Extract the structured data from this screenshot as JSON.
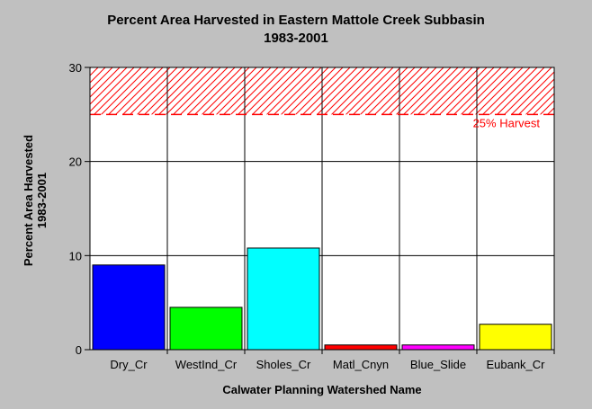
{
  "chart_data": {
    "type": "bar",
    "title": "Percent Area Harvested in Eastern Mattole Creek Subbasin",
    "subtitle": "1983-2001",
    "xlabel": "Calwater Planning Watershed Name",
    "ylabel": "Percent Area Harvested",
    "ylabel2": "1983-2001",
    "categories": [
      "Dry_Cr",
      "WestInd_Cr",
      "Sholes_Cr",
      "Matl_Cnyn",
      "Blue_Slide",
      "Eubank_Cr"
    ],
    "values": [
      9.0,
      4.5,
      10.8,
      0.5,
      0.5,
      2.7
    ],
    "colors": [
      "#0000ff",
      "#00ff00",
      "#00ffff",
      "#ff0000",
      "#ff00ff",
      "#ffff00"
    ],
    "ylim": [
      0,
      30
    ],
    "yticks": [
      0,
      10,
      20,
      30
    ],
    "grid": true,
    "threshold": {
      "value": 25,
      "label": "25% Harvest",
      "color": "#ff0000"
    }
  }
}
